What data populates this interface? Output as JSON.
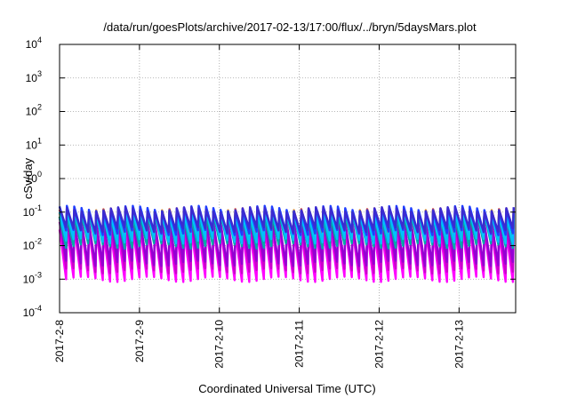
{
  "chart_data": {
    "type": "line",
    "title": "/data/run/goesPlots/archive/2017-02-13/17:00/flux/../bryn/5daysMars.plot",
    "xlabel": "Coordinated Universal Time (UTC)",
    "ylabel": "cSv/day",
    "y_scale": "log",
    "ylim": [
      0.0001,
      10000
    ],
    "xlim": [
      "2017-02-08 00:00",
      "2017-02-13 17:00"
    ],
    "x_ticks": [
      "2017-2-8",
      "2017-2-9",
      "2017-2-10",
      "2017-2-11",
      "2017-2-12",
      "2017-2-13"
    ],
    "y_ticks": [
      {
        "base": "10",
        "exp": "-4"
      },
      {
        "base": "10",
        "exp": "-3"
      },
      {
        "base": "10",
        "exp": "-2"
      },
      {
        "base": "10",
        "exp": "-1"
      },
      {
        "base": "10",
        "exp": "0"
      },
      {
        "base": "10",
        "exp": "1"
      },
      {
        "base": "10",
        "exp": "2"
      },
      {
        "base": "10",
        "exp": "3"
      },
      {
        "base": "10",
        "exp": "4"
      }
    ],
    "grid": true,
    "cycle_hours": 2.2,
    "series": [
      {
        "color": "#ff00ff",
        "peak": 0.03,
        "trough": 0.001
      },
      {
        "color": "#cc00cc",
        "peak": 0.045,
        "trough": 0.0018
      },
      {
        "color": "#9400d3",
        "peak": 0.06,
        "trough": 0.003
      },
      {
        "color": "#d21f3c",
        "peak": 0.11,
        "trough": 0.02
      },
      {
        "color": "#ff8c00",
        "peak": 0.1,
        "trough": 0.016
      },
      {
        "color": "#00a000",
        "peak": 0.09,
        "trough": 0.012
      },
      {
        "color": "#00aaaa",
        "peak": 0.08,
        "trough": 0.01
      },
      {
        "color": "#00bfff",
        "peak": 0.1,
        "trough": 0.014
      },
      {
        "color": "#1f3fff",
        "peak": 0.13,
        "trough": 0.025
      },
      {
        "color": "#3b2bd0",
        "peak": 0.12,
        "trough": 0.03
      }
    ]
  }
}
